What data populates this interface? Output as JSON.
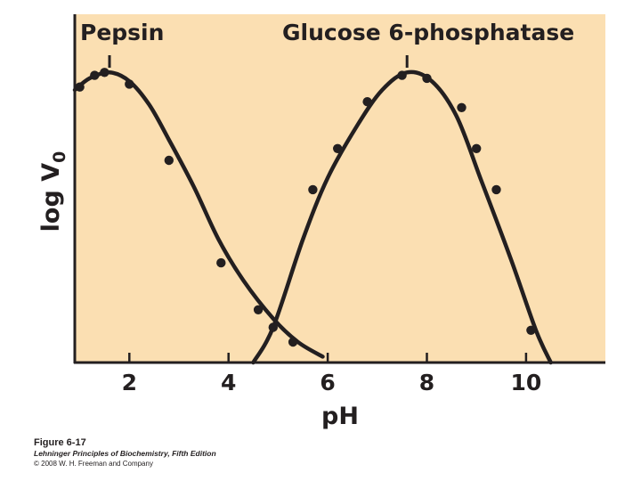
{
  "chart_data": {
    "type": "line",
    "xlabel": "pH",
    "ylabel": "log V",
    "ylabel_subscript": "0",
    "xlim": [
      0.9,
      11.6
    ],
    "ylim": [
      0,
      1
    ],
    "xticks": [
      2,
      4,
      6,
      8,
      10
    ],
    "grid": false,
    "series": [
      {
        "name": "Pepsin",
        "curve": [
          [
            0.9,
            0.93
          ],
          [
            1.2,
            0.97
          ],
          [
            1.6,
            0.99
          ],
          [
            2.0,
            0.96
          ],
          [
            2.4,
            0.88
          ],
          [
            2.8,
            0.76
          ],
          [
            3.3,
            0.6
          ],
          [
            3.8,
            0.42
          ],
          [
            4.3,
            0.28
          ],
          [
            4.9,
            0.15
          ],
          [
            5.4,
            0.07
          ],
          [
            5.9,
            0.02
          ]
        ],
        "points": [
          [
            1.0,
            0.94
          ],
          [
            1.3,
            0.98
          ],
          [
            1.5,
            0.99
          ],
          [
            2.0,
            0.95
          ],
          [
            2.8,
            0.69
          ],
          [
            3.85,
            0.34
          ],
          [
            4.6,
            0.18
          ],
          [
            5.3,
            0.07
          ]
        ]
      },
      {
        "name": "Glucose 6-phosphatase",
        "curve": [
          [
            4.5,
            0.0
          ],
          [
            4.9,
            0.12
          ],
          [
            5.5,
            0.42
          ],
          [
            6.0,
            0.63
          ],
          [
            6.6,
            0.81
          ],
          [
            7.1,
            0.93
          ],
          [
            7.6,
            0.99
          ],
          [
            8.1,
            0.96
          ],
          [
            8.6,
            0.84
          ],
          [
            9.1,
            0.62
          ],
          [
            9.7,
            0.35
          ],
          [
            10.2,
            0.11
          ],
          [
            10.5,
            0.0
          ]
        ],
        "points": [
          [
            4.9,
            0.12
          ],
          [
            5.7,
            0.59
          ],
          [
            6.2,
            0.73
          ],
          [
            6.8,
            0.89
          ],
          [
            7.5,
            0.98
          ],
          [
            8.0,
            0.97
          ],
          [
            8.7,
            0.87
          ],
          [
            9.0,
            0.73
          ],
          [
            9.4,
            0.59
          ],
          [
            10.1,
            0.11
          ]
        ]
      }
    ],
    "colors": {
      "background": "#fbdfb2",
      "line": "#231f20"
    }
  },
  "caption": {
    "figure": "Figure 6-17",
    "book": "Lehninger Principles of Biochemistry, Fifth Edition",
    "copyright": "© 2008 W. H. Freeman and Company"
  }
}
